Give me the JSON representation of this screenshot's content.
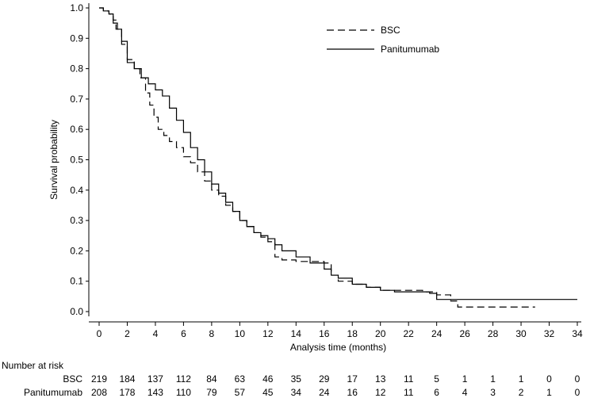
{
  "chart_data": {
    "type": "line",
    "subtype": "kaplan-meier survival curve",
    "xlabel": "Analysis time (months)",
    "ylabel": "Survival probability",
    "xlim": [
      0,
      34
    ],
    "ylim": [
      0,
      1
    ],
    "x_ticks": [
      "0",
      "2",
      "4",
      "6",
      "8",
      "10",
      "12",
      "14",
      "16",
      "18",
      "20",
      "22",
      "24",
      "26",
      "28",
      "30",
      "32",
      "34"
    ],
    "y_ticks": [
      "0.0",
      "0.1",
      "0.2",
      "0.3",
      "0.4",
      "0.5",
      "0.6",
      "0.7",
      "0.8",
      "0.9",
      "1.0"
    ],
    "grid": false,
    "legend_position": "top-right",
    "series": [
      {
        "name": "BSC",
        "line_style": "dashed",
        "color": "#000000",
        "points": [
          [
            0,
            1.0
          ],
          [
            0.3,
            0.99
          ],
          [
            0.7,
            0.98
          ],
          [
            1.0,
            0.96
          ],
          [
            1.2,
            0.93
          ],
          [
            1.6,
            0.88
          ],
          [
            2.0,
            0.83
          ],
          [
            2.5,
            0.8
          ],
          [
            2.9,
            0.77
          ],
          [
            3.3,
            0.72
          ],
          [
            3.6,
            0.68
          ],
          [
            3.9,
            0.64
          ],
          [
            4.2,
            0.6
          ],
          [
            4.6,
            0.58
          ],
          [
            5.0,
            0.56
          ],
          [
            5.5,
            0.54
          ],
          [
            6.0,
            0.51
          ],
          [
            6.5,
            0.49
          ],
          [
            7.0,
            0.46
          ],
          [
            7.5,
            0.43
          ],
          [
            8.0,
            0.4
          ],
          [
            8.5,
            0.38
          ],
          [
            9.0,
            0.35
          ],
          [
            9.5,
            0.33
          ],
          [
            10.0,
            0.3
          ],
          [
            10.5,
            0.28
          ],
          [
            11.0,
            0.26
          ],
          [
            11.5,
            0.245
          ],
          [
            12.0,
            0.23
          ],
          [
            12.5,
            0.18
          ],
          [
            13.0,
            0.17
          ],
          [
            14.0,
            0.165
          ],
          [
            15.0,
            0.165
          ],
          [
            16.0,
            0.16
          ],
          [
            16.5,
            0.12
          ],
          [
            17.0,
            0.1
          ],
          [
            18.0,
            0.09
          ],
          [
            19.0,
            0.08
          ],
          [
            20.0,
            0.07
          ],
          [
            21.0,
            0.07
          ],
          [
            23.0,
            0.065
          ],
          [
            24.0,
            0.055
          ],
          [
            25.0,
            0.035
          ],
          [
            25.5,
            0.015
          ],
          [
            31.0,
            0.015
          ]
        ]
      },
      {
        "name": "Panitumumab",
        "line_style": "solid",
        "color": "#000000",
        "points": [
          [
            0,
            1.0
          ],
          [
            0.3,
            0.99
          ],
          [
            0.7,
            0.98
          ],
          [
            1.0,
            0.95
          ],
          [
            1.3,
            0.93
          ],
          [
            1.6,
            0.89
          ],
          [
            2.0,
            0.82
          ],
          [
            2.5,
            0.8
          ],
          [
            3.0,
            0.77
          ],
          [
            3.5,
            0.75
          ],
          [
            4.0,
            0.73
          ],
          [
            4.5,
            0.71
          ],
          [
            5.0,
            0.67
          ],
          [
            5.5,
            0.63
          ],
          [
            6.0,
            0.59
          ],
          [
            6.5,
            0.54
          ],
          [
            7.0,
            0.5
          ],
          [
            7.5,
            0.46
          ],
          [
            8.0,
            0.42
          ],
          [
            8.5,
            0.39
          ],
          [
            9.0,
            0.36
          ],
          [
            9.5,
            0.33
          ],
          [
            10.0,
            0.3
          ],
          [
            10.5,
            0.28
          ],
          [
            11.0,
            0.26
          ],
          [
            11.5,
            0.25
          ],
          [
            12.0,
            0.24
          ],
          [
            12.5,
            0.22
          ],
          [
            13.0,
            0.2
          ],
          [
            14.0,
            0.18
          ],
          [
            15.0,
            0.16
          ],
          [
            16.0,
            0.14
          ],
          [
            16.5,
            0.12
          ],
          [
            17.0,
            0.11
          ],
          [
            18.0,
            0.09
          ],
          [
            19.0,
            0.08
          ],
          [
            20.0,
            0.07
          ],
          [
            21.0,
            0.065
          ],
          [
            23.0,
            0.065
          ],
          [
            23.5,
            0.06
          ],
          [
            24.0,
            0.04
          ],
          [
            34.0,
            0.04
          ]
        ]
      }
    ],
    "risk_table": {
      "title": "Number at risk",
      "columns": [
        "0",
        "2",
        "4",
        "6",
        "8",
        "10",
        "12",
        "14",
        "16",
        "18",
        "20",
        "22",
        "24",
        "26",
        "28",
        "30",
        "32",
        "34"
      ],
      "rows": [
        {
          "label": "BSC",
          "values": [
            "219",
            "184",
            "137",
            "112",
            "84",
            "63",
            "46",
            "35",
            "29",
            "17",
            "13",
            "11",
            "5",
            "1",
            "1",
            "1",
            "0",
            "0"
          ]
        },
        {
          "label": "Panitumumab",
          "values": [
            "208",
            "178",
            "143",
            "110",
            "79",
            "57",
            "45",
            "34",
            "24",
            "16",
            "12",
            "11",
            "6",
            "4",
            "3",
            "2",
            "1",
            "0"
          ]
        }
      ]
    }
  }
}
